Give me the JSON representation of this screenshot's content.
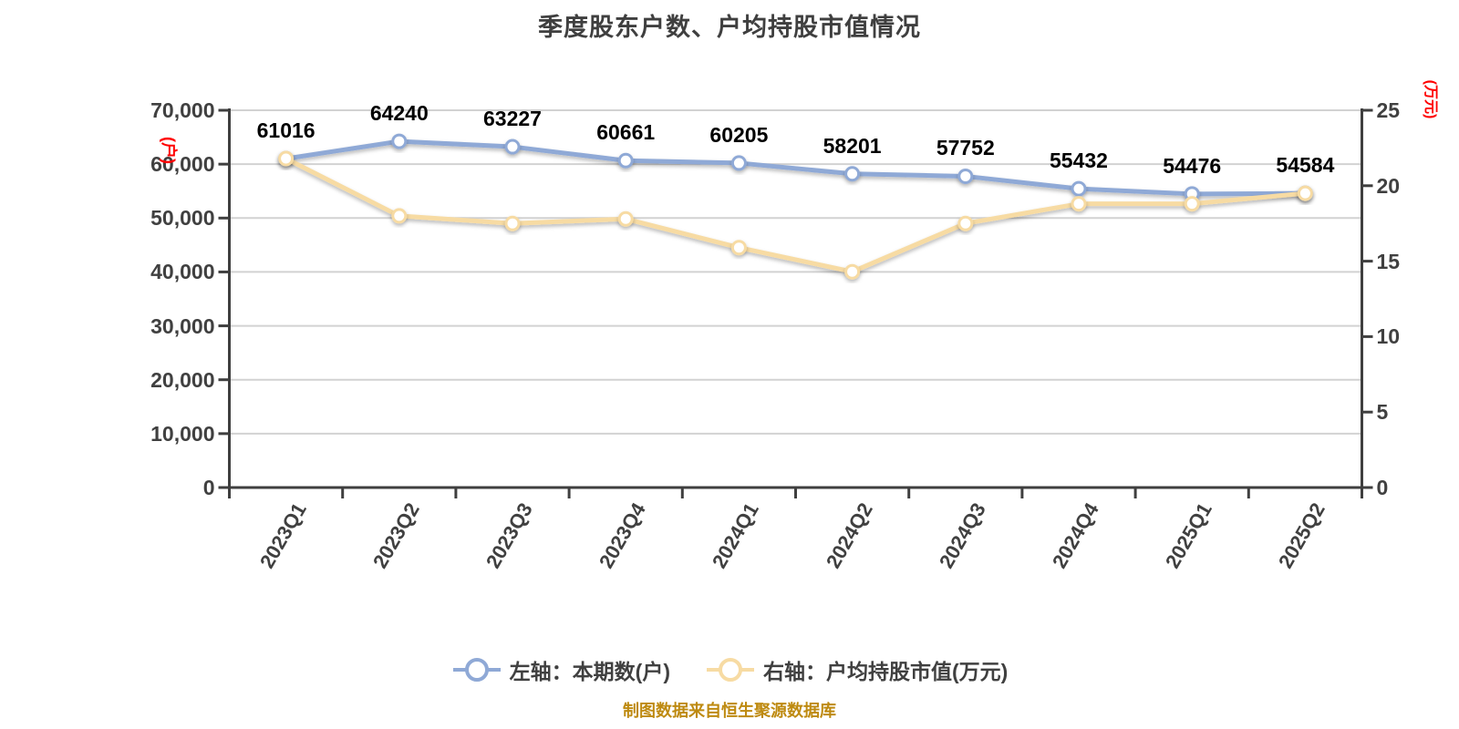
{
  "title": "季度股东户数、户均持股市值情况",
  "footer": "制图数据来自恒生聚源数据库",
  "colors": {
    "holders_line": "#8fa9d6",
    "market_value_line": "#f7dba3",
    "axis": "#3f3f3f",
    "grid": "#d2d2d2",
    "tick_text": "#404040",
    "data_label": "#000000",
    "axis_title": "#ff0000",
    "footer_text": "#be8a10",
    "marker_fill": "#ffffff"
  },
  "legend": [
    {
      "label": "左轴：本期数(户)",
      "series": "holders"
    },
    {
      "label": "右轴：户均持股市值(万元)",
      "series": "market_value"
    }
  ],
  "chart_data": {
    "type": "line",
    "title": "季度股东户数、户均持股市值情况",
    "categories": [
      "2023Q1",
      "2023Q2",
      "2023Q3",
      "2023Q4",
      "2024Q1",
      "2024Q2",
      "2024Q3",
      "2024Q4",
      "2025Q1",
      "2025Q2"
    ],
    "series": [
      {
        "name": "左轴：本期数(户)",
        "key": "holders",
        "axis": "left",
        "values": [
          61016,
          64240,
          63227,
          60661,
          60205,
          58201,
          57752,
          55432,
          54476,
          54584
        ],
        "data_labels_shown": true
      },
      {
        "name": "右轴：户均持股市值(万元)",
        "key": "market_value",
        "axis": "right",
        "values": [
          21.8,
          18.0,
          17.5,
          17.8,
          15.9,
          14.3,
          17.5,
          18.8,
          18.8,
          19.5
        ],
        "data_labels_shown": false
      }
    ],
    "left_axis": {
      "title": "(户)",
      "min": 0,
      "max": 70000,
      "step": 10000,
      "tick_labels": [
        "0",
        "10,000",
        "20,000",
        "30,000",
        "40,000",
        "50,000",
        "60,000",
        "70,000"
      ]
    },
    "right_axis": {
      "title": "(万元)",
      "min": 0,
      "max": 25,
      "step": 5,
      "tick_labels": [
        "0",
        "5",
        "10",
        "15",
        "20",
        "25"
      ]
    },
    "grid": "horizontal-only",
    "legend_position": "bottom"
  }
}
